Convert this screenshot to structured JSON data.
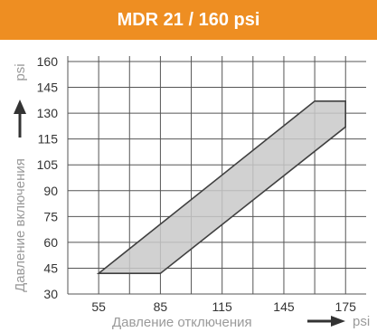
{
  "chart_data": {
    "type": "area",
    "title": "MDR 21 / 160 psi",
    "xlabel": "Давление отключения",
    "ylabel": "Давление включения",
    "xunit": "psi",
    "yunit": "psi",
    "xticks": [
      55,
      85,
      115,
      145,
      175
    ],
    "yticks": [
      30,
      45,
      60,
      75,
      90,
      105,
      115,
      130,
      145,
      160
    ],
    "xlim": [
      40,
      185
    ],
    "ylim": [
      30,
      162
    ],
    "grid": true,
    "series": [
      {
        "polygon": [
          {
            "x": 55,
            "y": 42
          },
          {
            "x": 85,
            "y": 42
          },
          {
            "x": 175,
            "y": 122
          },
          {
            "x": 175,
            "y": 137
          },
          {
            "x": 160,
            "y": 137
          },
          {
            "x": 55,
            "y": 42
          }
        ]
      }
    ],
    "colors": {
      "banner": "#ee8e22",
      "fill": "#c9c9c9",
      "stroke": "#404040",
      "grid": "#555555"
    }
  }
}
